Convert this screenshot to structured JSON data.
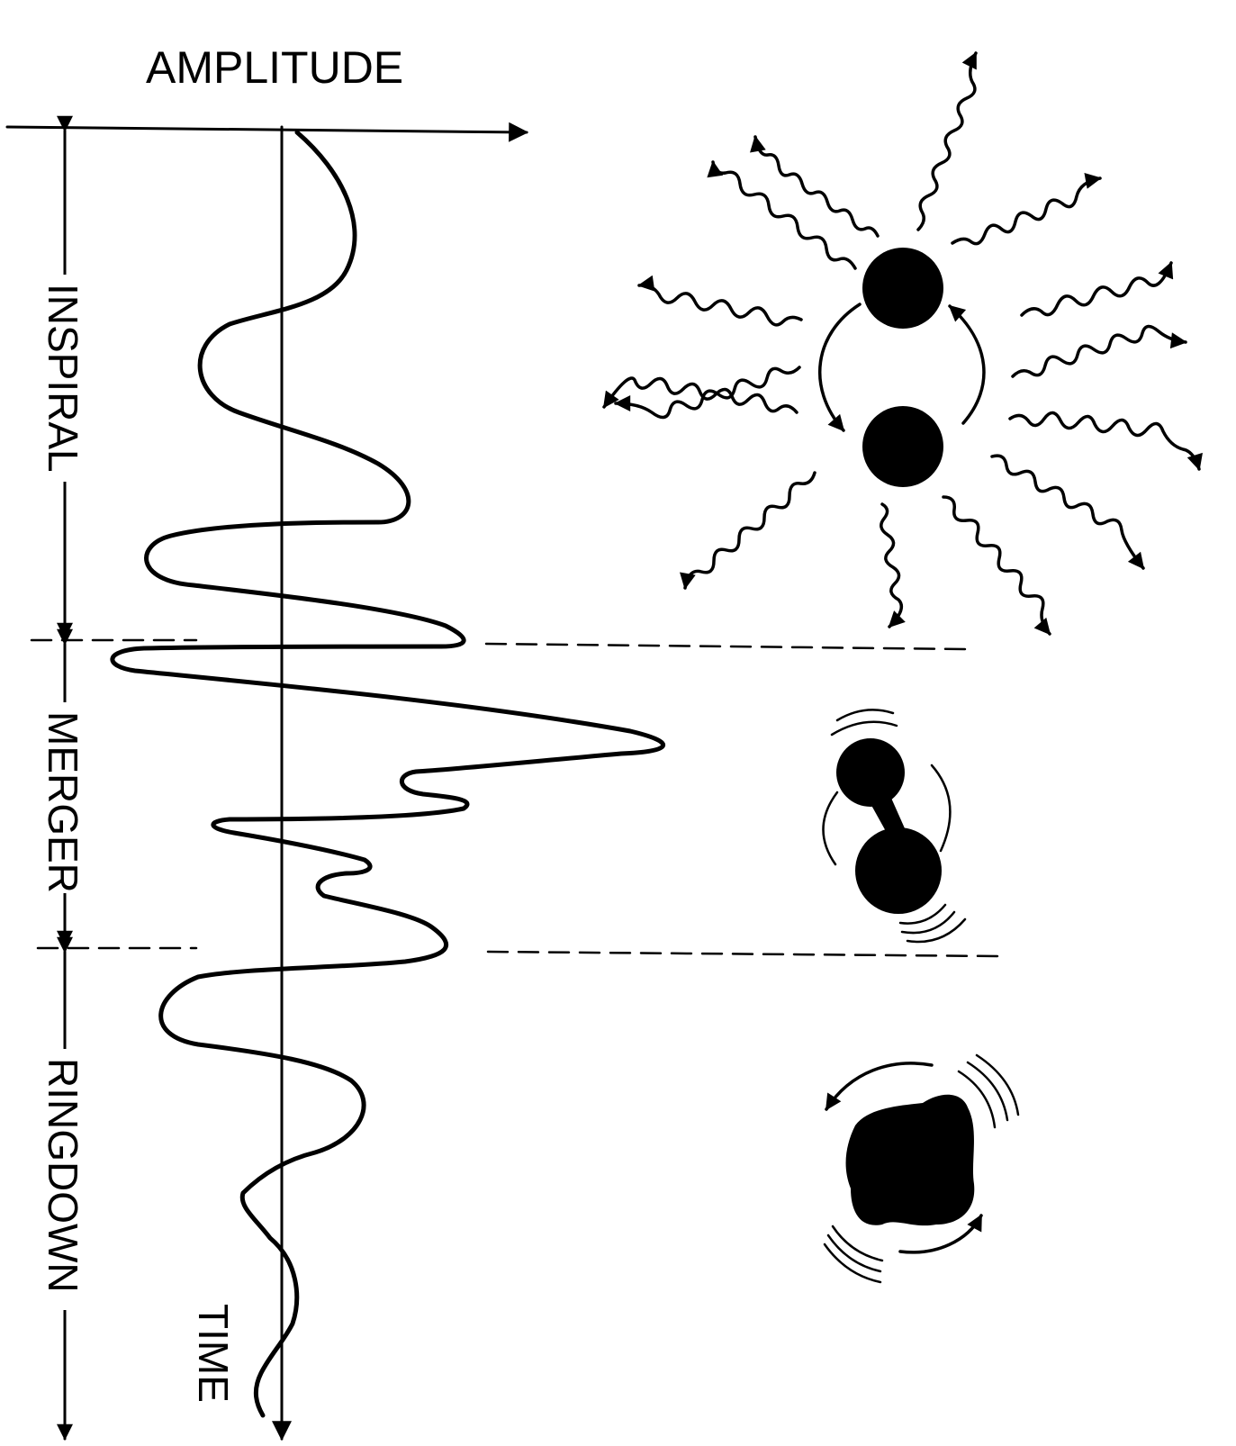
{
  "labels": {
    "amplitude": "AMPLITUDE",
    "time": "TIME",
    "inspiral": "INSPIRAL",
    "merger": "MERGER",
    "ringdown": "RINGDOWN"
  },
  "colors": {
    "ink": "#000000",
    "paper": "#ffffff"
  }
}
